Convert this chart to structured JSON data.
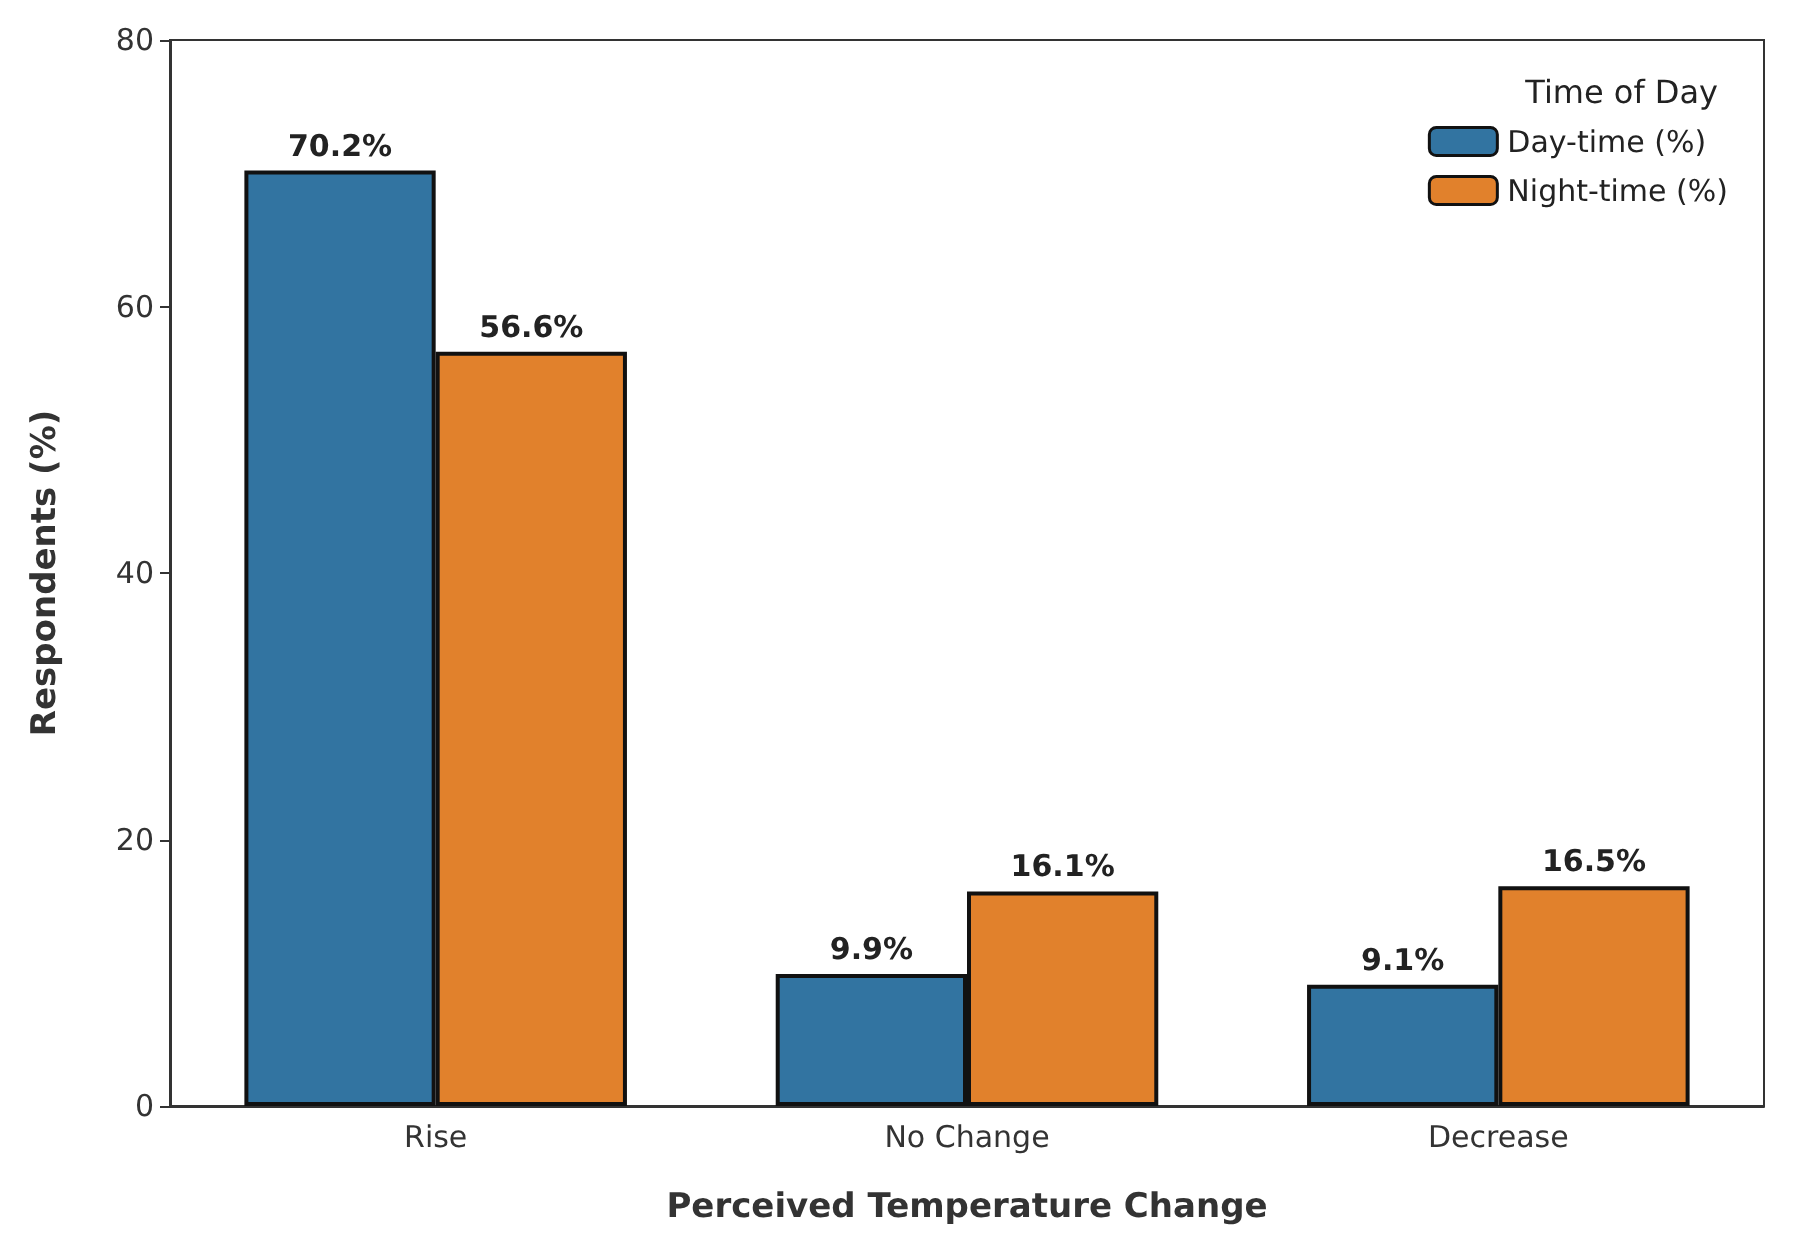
{
  "chart_data": {
    "type": "bar",
    "xlabel": "Perceived Temperature Change",
    "ylabel": "Respondents (%)",
    "legend_title": "Time of Day",
    "categories": [
      "Rise",
      "No Change",
      "Decrease"
    ],
    "series": [
      {
        "name": "Day-time (%)",
        "color": "#3274a1",
        "values": [
          70.2,
          9.9,
          9.1
        ],
        "value_labels": [
          "70.2%",
          "9.9%",
          "9.1%"
        ]
      },
      {
        "name": "Night-time (%)",
        "color": "#e1812c",
        "values": [
          56.6,
          16.1,
          16.5
        ],
        "value_labels": [
          "56.6%",
          "16.1%",
          "16.5%"
        ]
      }
    ],
    "ylim": [
      0,
      80
    ],
    "yticks": [
      0,
      20,
      40,
      60,
      80
    ],
    "grid": false,
    "legend": "top right"
  }
}
